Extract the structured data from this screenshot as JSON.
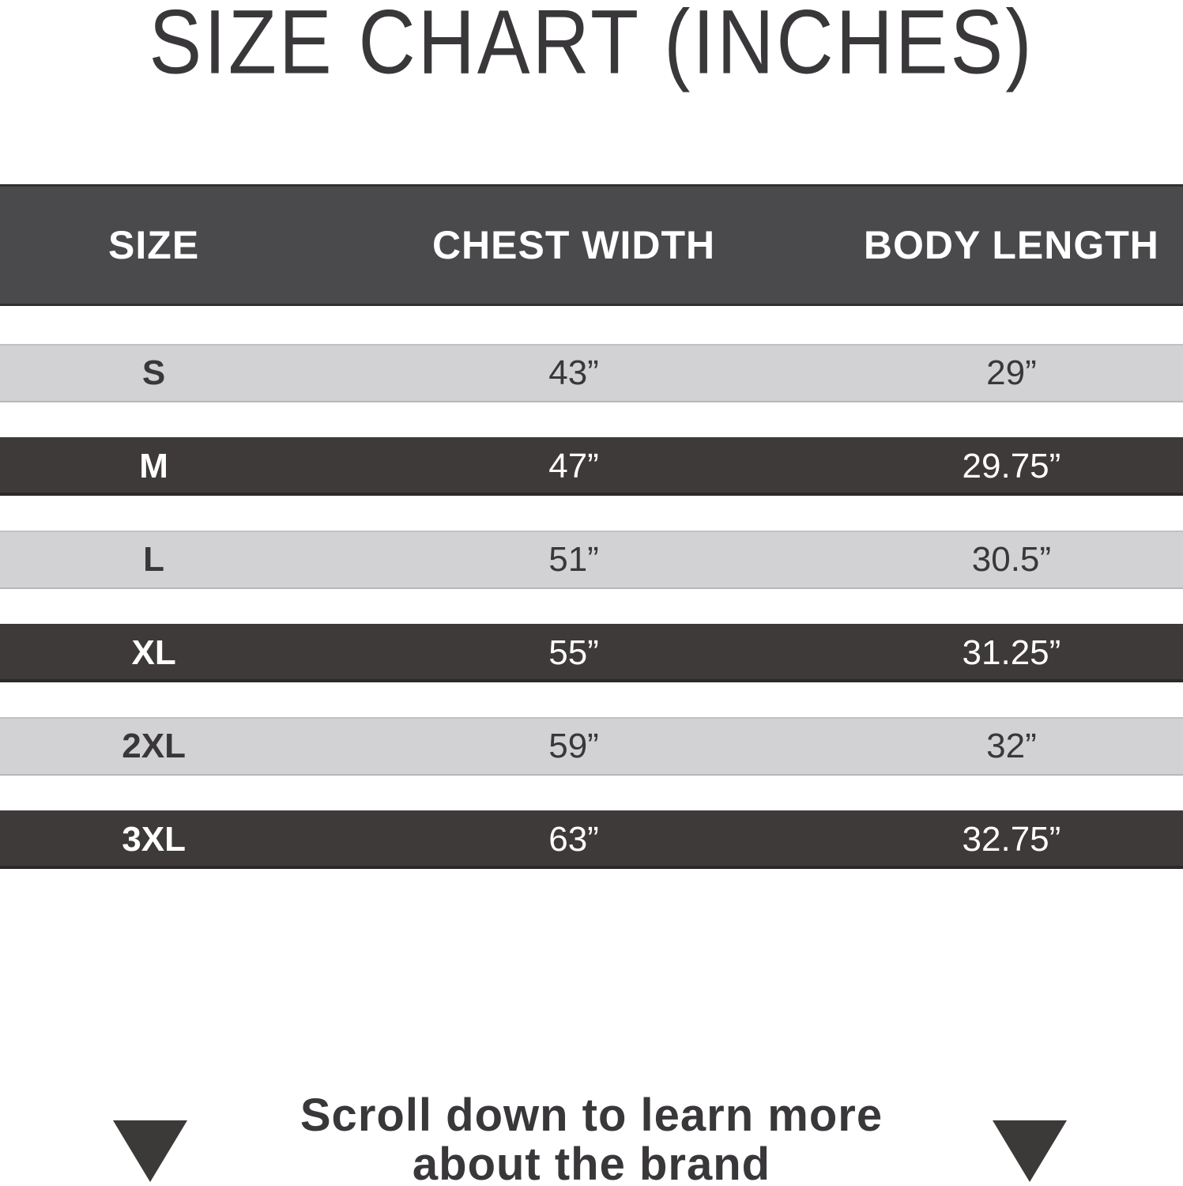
{
  "title": "SIZE CHART (INCHES)",
  "table": {
    "headers": [
      "SIZE",
      "CHEST WIDTH",
      "BODY LENGTH"
    ],
    "rows": [
      {
        "size": "S",
        "chest": "43”",
        "length": "29”",
        "variant": "light"
      },
      {
        "size": "M",
        "chest": "47”",
        "length": "29.75”",
        "variant": "dark"
      },
      {
        "size": "L",
        "chest": "51”",
        "length": "30.5”",
        "variant": "light"
      },
      {
        "size": "XL",
        "chest": "55”",
        "length": "31.25”",
        "variant": "dark"
      },
      {
        "size": "2XL",
        "chest": "59”",
        "length": "32”",
        "variant": "light"
      },
      {
        "size": "3XL",
        "chest": "63”",
        "length": "32.75”",
        "variant": "dark"
      }
    ]
  },
  "footer": {
    "line1": "Scroll down to learn more",
    "line2": "about the brand",
    "arrow_icon": "triangle-down"
  },
  "colors": {
    "header_bg": "#4a494b",
    "dark_row_bg": "#3d3a39",
    "light_row_bg": "#d2d2d4",
    "text_dark": "#39373a",
    "text_light": "#ffffff",
    "triangle": "#3c3a39"
  },
  "chart_data": {
    "type": "table",
    "title": "SIZE CHART (INCHES)",
    "units": "inches",
    "columns": [
      "SIZE",
      "CHEST WIDTH",
      "BODY LENGTH"
    ],
    "rows": [
      {
        "size": "S",
        "chest_width": 43,
        "body_length": 29
      },
      {
        "size": "M",
        "chest_width": 47,
        "body_length": 29.75
      },
      {
        "size": "L",
        "chest_width": 51,
        "body_length": 30.5
      },
      {
        "size": "XL",
        "chest_width": 55,
        "body_length": 31.25
      },
      {
        "size": "2XL",
        "chest_width": 59,
        "body_length": 32
      },
      {
        "size": "3XL",
        "chest_width": 63,
        "body_length": 32.75
      }
    ],
    "layout": {
      "row_striping": [
        "light",
        "dark"
      ],
      "header_style": "dark-band"
    }
  }
}
